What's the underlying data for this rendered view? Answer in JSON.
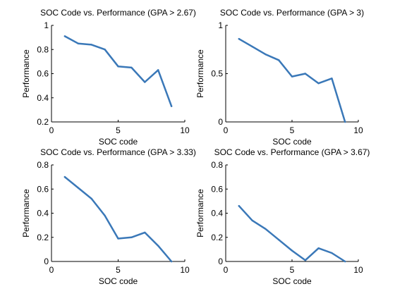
{
  "chart_data": [
    {
      "type": "line",
      "title": "SOC Code vs. Performance (GPA > 2.67)",
      "xlabel": "SOC code",
      "ylabel": "Performance",
      "xlim": [
        0,
        10
      ],
      "ylim": [
        0.2,
        1
      ],
      "xticks": [
        0,
        5,
        10
      ],
      "yticks": [
        0.2,
        0.4,
        0.6,
        0.8,
        1
      ],
      "ytick_labels": [
        "0.2",
        "0.4",
        "0.6",
        "0.8",
        "1"
      ],
      "line_color": "#3a78b8",
      "x": [
        1,
        2,
        3,
        4,
        5,
        6,
        7,
        8,
        9
      ],
      "y": [
        0.91,
        0.85,
        0.84,
        0.8,
        0.66,
        0.65,
        0.53,
        0.63,
        0.33
      ]
    },
    {
      "type": "line",
      "title": "SOC Code vs. Performance (GPA > 3)",
      "xlabel": "SOC code",
      "ylabel": "Performance",
      "xlim": [
        0,
        10
      ],
      "ylim": [
        0,
        1
      ],
      "xticks": [
        0,
        5,
        10
      ],
      "yticks": [
        0,
        0.5,
        1
      ],
      "ytick_labels": [
        "0",
        "0.5",
        "1"
      ],
      "line_color": "#3a78b8",
      "x": [
        1,
        2,
        3,
        4,
        5,
        6,
        7,
        8,
        9
      ],
      "y": [
        0.86,
        0.78,
        0.7,
        0.64,
        0.47,
        0.5,
        0.4,
        0.45,
        0.0
      ]
    },
    {
      "type": "line",
      "title": "SOC Code vs. Performance (GPA > 3.33)",
      "xlabel": "SOC code",
      "ylabel": "Performance",
      "xlim": [
        0,
        10
      ],
      "ylim": [
        0,
        0.8
      ],
      "xticks": [
        0,
        5,
        10
      ],
      "yticks": [
        0,
        0.2,
        0.4,
        0.6,
        0.8
      ],
      "ytick_labels": [
        "0",
        "0.2",
        "0.4",
        "0.6",
        "0.8"
      ],
      "line_color": "#3a78b8",
      "x": [
        1,
        2,
        3,
        4,
        5,
        6,
        7,
        8,
        9
      ],
      "y": [
        0.7,
        0.61,
        0.52,
        0.38,
        0.19,
        0.2,
        0.24,
        0.13,
        0.0
      ]
    },
    {
      "type": "line",
      "title": "SOC Code vs. Performance (GPA > 3.67)",
      "xlabel": "SOC code",
      "ylabel": "Performance",
      "xlim": [
        0,
        10
      ],
      "ylim": [
        0,
        0.8
      ],
      "xticks": [
        0,
        5,
        10
      ],
      "yticks": [
        0,
        0.2,
        0.4,
        0.6,
        0.8
      ],
      "ytick_labels": [
        "0",
        "0.2",
        "0.4",
        "0.6",
        "0.8"
      ],
      "line_color": "#3a78b8",
      "x": [
        1,
        2,
        3,
        4,
        5,
        6,
        7,
        8,
        9
      ],
      "y": [
        0.46,
        0.34,
        0.27,
        0.18,
        0.09,
        0.01,
        0.11,
        0.07,
        0.0
      ]
    }
  ]
}
